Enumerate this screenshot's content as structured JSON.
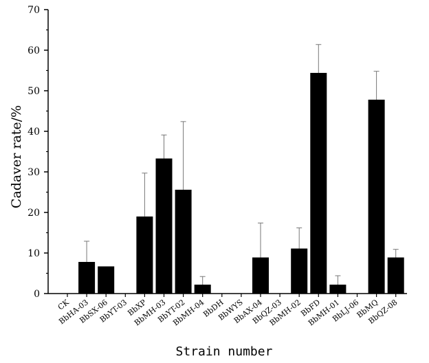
{
  "chart_data": {
    "type": "bar",
    "xlabel": "Strain number",
    "ylabel": "Cadaver rate/%",
    "ylim": [
      0,
      70
    ],
    "yticks": [
      0,
      10,
      20,
      30,
      40,
      50,
      60,
      70
    ],
    "grid": false,
    "error_bars": "upper",
    "bar_color": "#000000",
    "categories": [
      "CK",
      "BbHA-03",
      "BbSX-06",
      "BbYT-03",
      "BbXP",
      "BbMH-03",
      "BbYT-02",
      "BbMH-04",
      "BbDH",
      "BbWYS",
      "BbAX-04",
      "BbQZ-03",
      "BbMH-02",
      "BbFD",
      "BbMH-01",
      "BbLJ-06",
      "BbMQ",
      "BbQZ-08"
    ],
    "values": [
      0,
      7.8,
      6.7,
      0,
      19.0,
      33.3,
      25.6,
      2.2,
      0,
      0,
      8.9,
      0,
      11.1,
      54.4,
      2.2,
      0,
      47.8,
      8.9
    ],
    "errors": [
      0,
      5.1,
      0,
      0,
      10.7,
      5.8,
      16.8,
      2.0,
      0,
      0,
      8.5,
      0,
      5.1,
      7.0,
      2.2,
      0,
      7.0,
      2.0
    ]
  }
}
